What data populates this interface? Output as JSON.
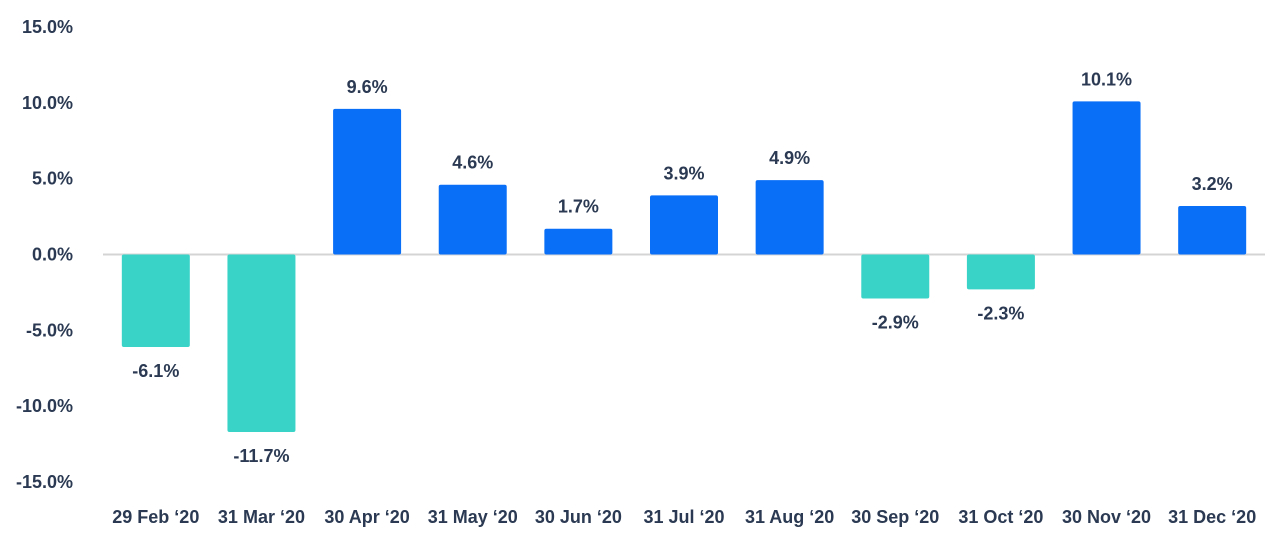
{
  "chart_data": {
    "type": "bar",
    "categories": [
      "29 Feb ‘20",
      "31 Mar ‘20",
      "30 Apr ‘20",
      "31 May ‘20",
      "30 Jun ‘20",
      "31 Jul ‘20",
      "31 Aug ‘20",
      "30 Sep ‘20",
      "31 Oct ‘20",
      "30 Nov ‘20",
      "31 Dec ‘20"
    ],
    "values": [
      -6.1,
      -11.7,
      9.6,
      4.6,
      1.7,
      3.9,
      4.9,
      -2.9,
      -2.3,
      10.1,
      3.2
    ],
    "data_labels": [
      "-6.1%",
      "-11.7%",
      "9.6%",
      "4.6%",
      "1.7%",
      "3.9%",
      "4.9%",
      "-2.9%",
      "-2.3%",
      "10.1%",
      "3.2%"
    ],
    "title": "",
    "xlabel": "",
    "ylabel": "",
    "ylim": [
      -15,
      15
    ],
    "y_ticks": [
      15,
      10,
      5,
      0,
      -5,
      -10,
      -15
    ],
    "y_tick_labels": [
      "15.0%",
      "10.0%",
      "5.0%",
      "0.0%",
      "-5.0%",
      "-10.0%",
      "-15.0%"
    ],
    "grid": false,
    "legend": "none",
    "colors": {
      "positive": "#0a6ff7",
      "negative": "#3ad3c8",
      "zero_line": "#d4d4d4",
      "text": "#2b3a52"
    }
  }
}
